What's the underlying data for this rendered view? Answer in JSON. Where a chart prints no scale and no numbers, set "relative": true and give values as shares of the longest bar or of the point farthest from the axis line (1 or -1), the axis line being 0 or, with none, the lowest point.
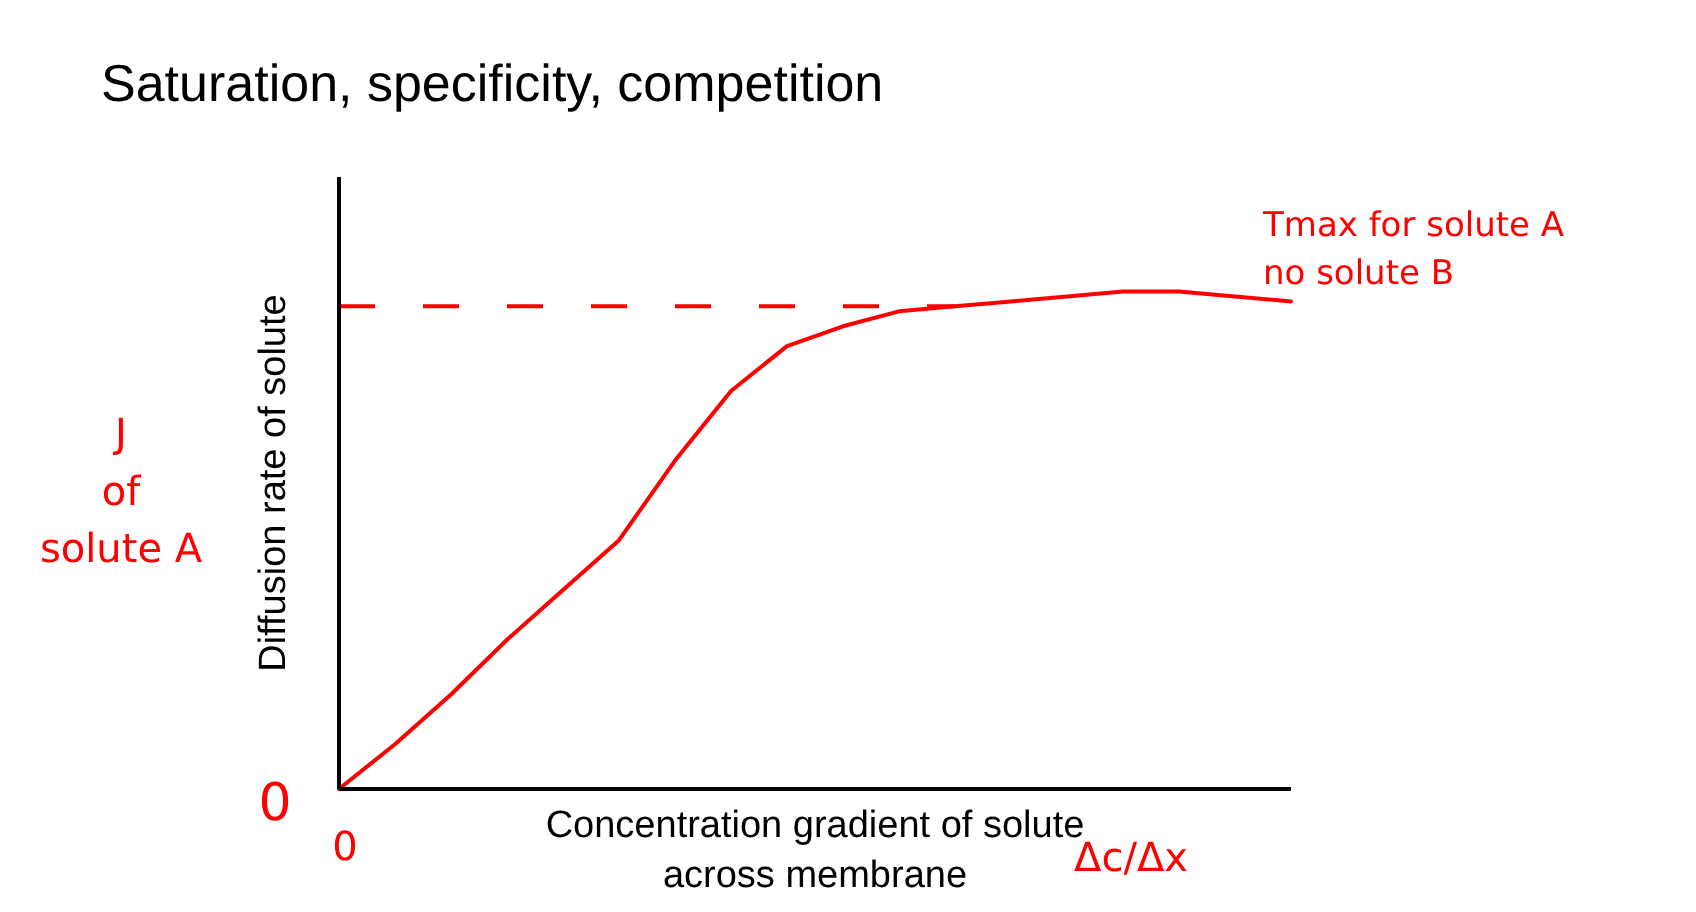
{
  "chart_data": {
    "type": "line",
    "title": "Saturation, specificity, competition",
    "xlabel": "Concentration gradient of solute\nacross membrane",
    "ylabel": "Diffusion rate of solute",
    "categories": [
      null,
      null,
      null,
      null,
      null,
      null,
      null,
      null,
      null,
      null,
      null,
      null,
      null,
      null,
      null,
      null,
      null,
      null
    ],
    "series": [
      {
        "color": "#ff0000",
        "values": [
          0,
          0.09,
          0.19,
          0.3,
          0.4,
          0.5,
          0.66,
          0.8,
          0.89,
          0.93,
          0.96,
          0.97,
          0.98,
          0.99,
          1.0,
          1.0,
          0.99,
          0.98
        ]
      }
    ],
    "relative": true,
    "ref_lines": [
      {
        "axis": "y",
        "value": 0.97,
        "label": "Tmax for solute A\nno solute B",
        "color": "#ff0000",
        "line_style": "dashed"
      }
    ],
    "annotations": [
      "J\nof\nsolute A",
      "0",
      "0",
      "Δc/Δx"
    ]
  }
}
